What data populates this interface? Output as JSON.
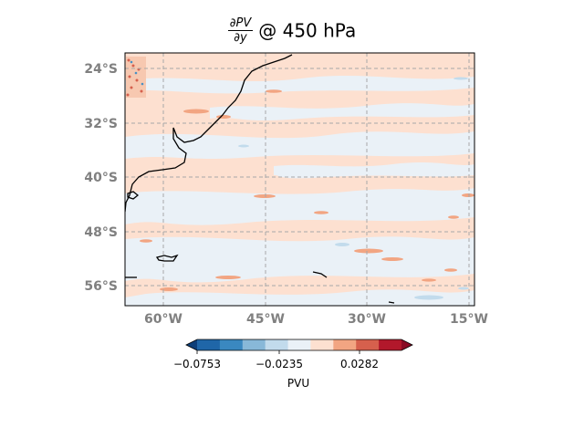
{
  "title": {
    "numerator": "∂PV",
    "denominator": "∂y",
    "rest": "@ 450 hPa"
  },
  "map": {
    "lat_labels": [
      "24°S",
      "32°S",
      "40°S",
      "48°S",
      "56°S"
    ],
    "lon_labels": [
      "60°W",
      "45°W",
      "30°W",
      "15°W"
    ],
    "gridlines": "dashed",
    "extent": {
      "lon_min": -66,
      "lon_max": -15,
      "lat_min": -59,
      "lat_max": -22
    }
  },
  "colorbar": {
    "label": "PVU",
    "ticks": [
      "−0.0753",
      "−0.0235",
      "0.0282"
    ],
    "colors": [
      "#0d3f7a",
      "#1f66a8",
      "#3a88c0",
      "#88b8d8",
      "#c2dbec",
      "#eaf1f7",
      "#fde0d0",
      "#f2a582",
      "#d6604d",
      "#b2182b",
      "#8a0b24"
    ]
  },
  "colors": {
    "positive": "#fde0d0",
    "neutral": "#eaf1f7",
    "mid_red": "#f2a582",
    "deep_red": "#d6604d",
    "light_blue": "#c2dbec",
    "tick_label": "#808080"
  }
}
